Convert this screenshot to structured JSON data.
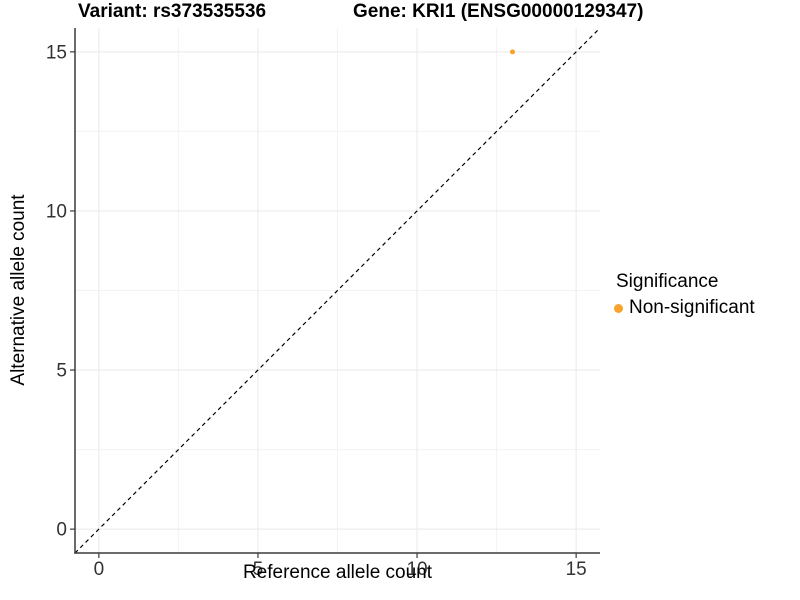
{
  "title": {
    "variant": "Variant: rs373535536",
    "gene": "Gene: KRI1 (ENSG00000129347)"
  },
  "chart_data": {
    "type": "scatter",
    "title": "Variant: rs373535536   Gene: KRI1 (ENSG00000129347)",
    "xlabel": "Reference allele count",
    "ylabel": "Alternative allele count",
    "xlim": [
      -0.75,
      15.75
    ],
    "ylim": [
      -0.75,
      15.75
    ],
    "xticks": [
      0,
      5,
      10,
      15
    ],
    "yticks": [
      0,
      5,
      10,
      15
    ],
    "x_minor": [
      2.5,
      7.5,
      12.5
    ],
    "y_minor": [
      2.5,
      7.5,
      12.5
    ],
    "grid": true,
    "reference_line": {
      "type": "identity",
      "slope": 1,
      "intercept": 0,
      "style": "dashed",
      "color": "#000000"
    },
    "series": [
      {
        "name": "Non-significant",
        "color": "#F9A32C",
        "marker_radius": 2.5,
        "points": [
          [
            13,
            15
          ]
        ]
      }
    ],
    "legend": {
      "title": "Significance",
      "position": "right",
      "items": [
        {
          "label": "Non-significant",
          "color": "#F9A32C"
        }
      ]
    }
  },
  "colors": {
    "background": "#FFFFFF",
    "grid_major": "#E9E9E9",
    "grid_minor": "#F3F3F3",
    "axis_line": "#3A3A3A",
    "tick_label": "#333333"
  }
}
